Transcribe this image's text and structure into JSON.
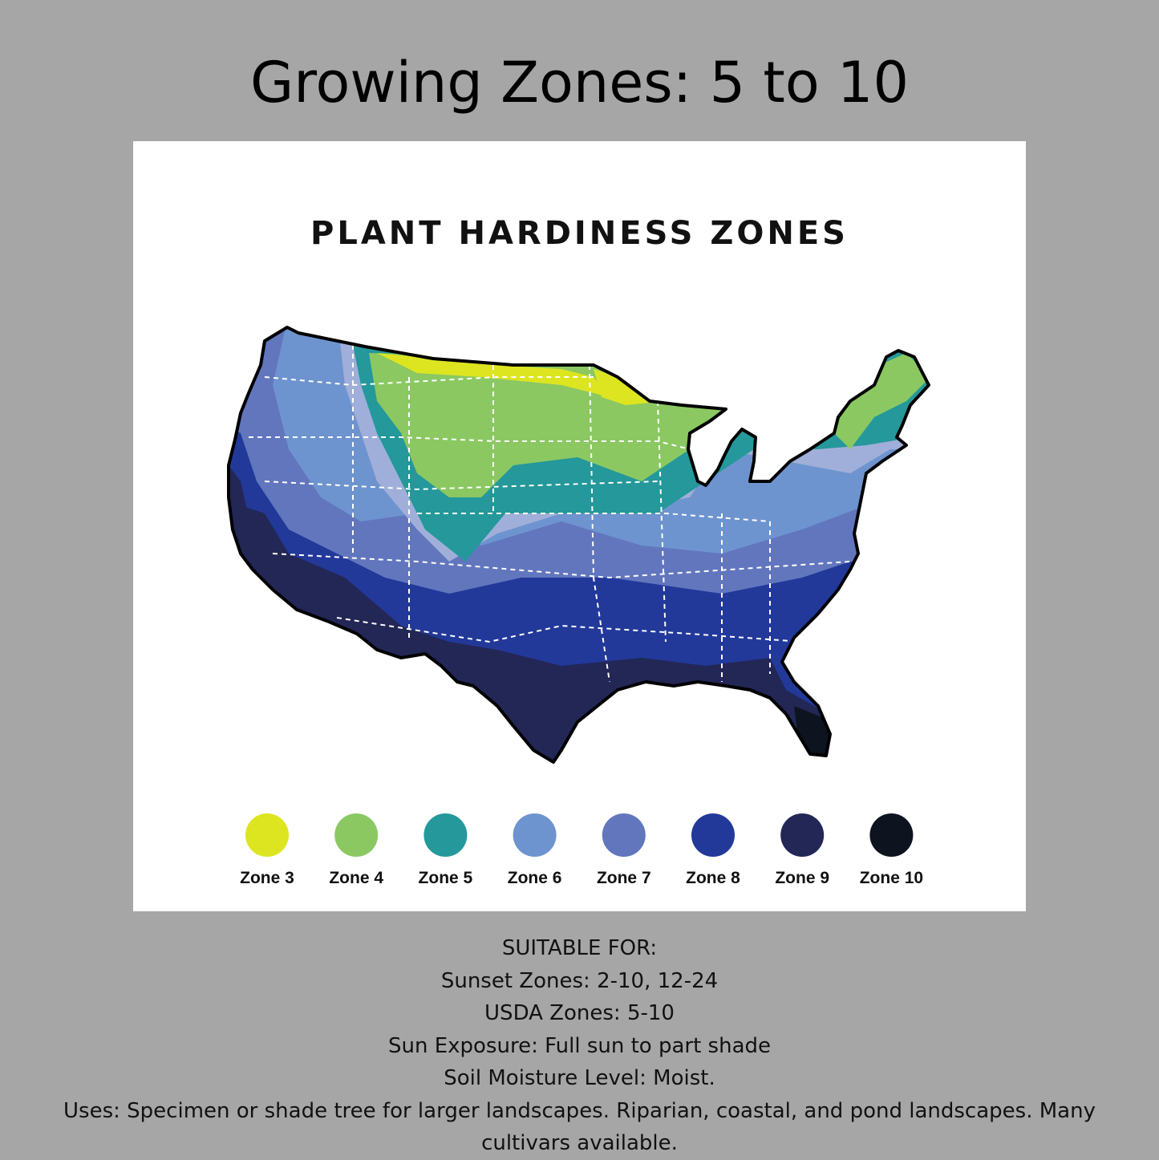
{
  "heading": "Growing Zones:  5 to 10",
  "map": {
    "title": "PLANT HARDINESS ZONES",
    "legend": [
      {
        "label": "Zone 3",
        "color": "#dde520"
      },
      {
        "label": "Zone 4",
        "color": "#8bc862"
      },
      {
        "label": "Zone 5",
        "color": "#24989a"
      },
      {
        "label": "Zone 6",
        "color": "#6e94cf"
      },
      {
        "label": "Zone 7",
        "color": "#6276be"
      },
      {
        "label": "Zone 8",
        "color": "#22399a"
      },
      {
        "label": "Zone 9",
        "color": "#232756"
      },
      {
        "label": "Zone 10",
        "color": "#0e141f"
      }
    ]
  },
  "info": {
    "suitable_for": "SUITABLE FOR:",
    "sunset_zones": "Sunset Zones: 2-10, 12-24",
    "usda_zones": "USDA Zones: 5-10",
    "sun_exposure": "Sun Exposure: Full sun to part shade",
    "soil_moisture": "Soil Moisture Level: Moist.",
    "uses": "Uses: Specimen or shade tree for larger landscapes. Riparian, coastal, and pond landscapes. Many cultivars available."
  }
}
